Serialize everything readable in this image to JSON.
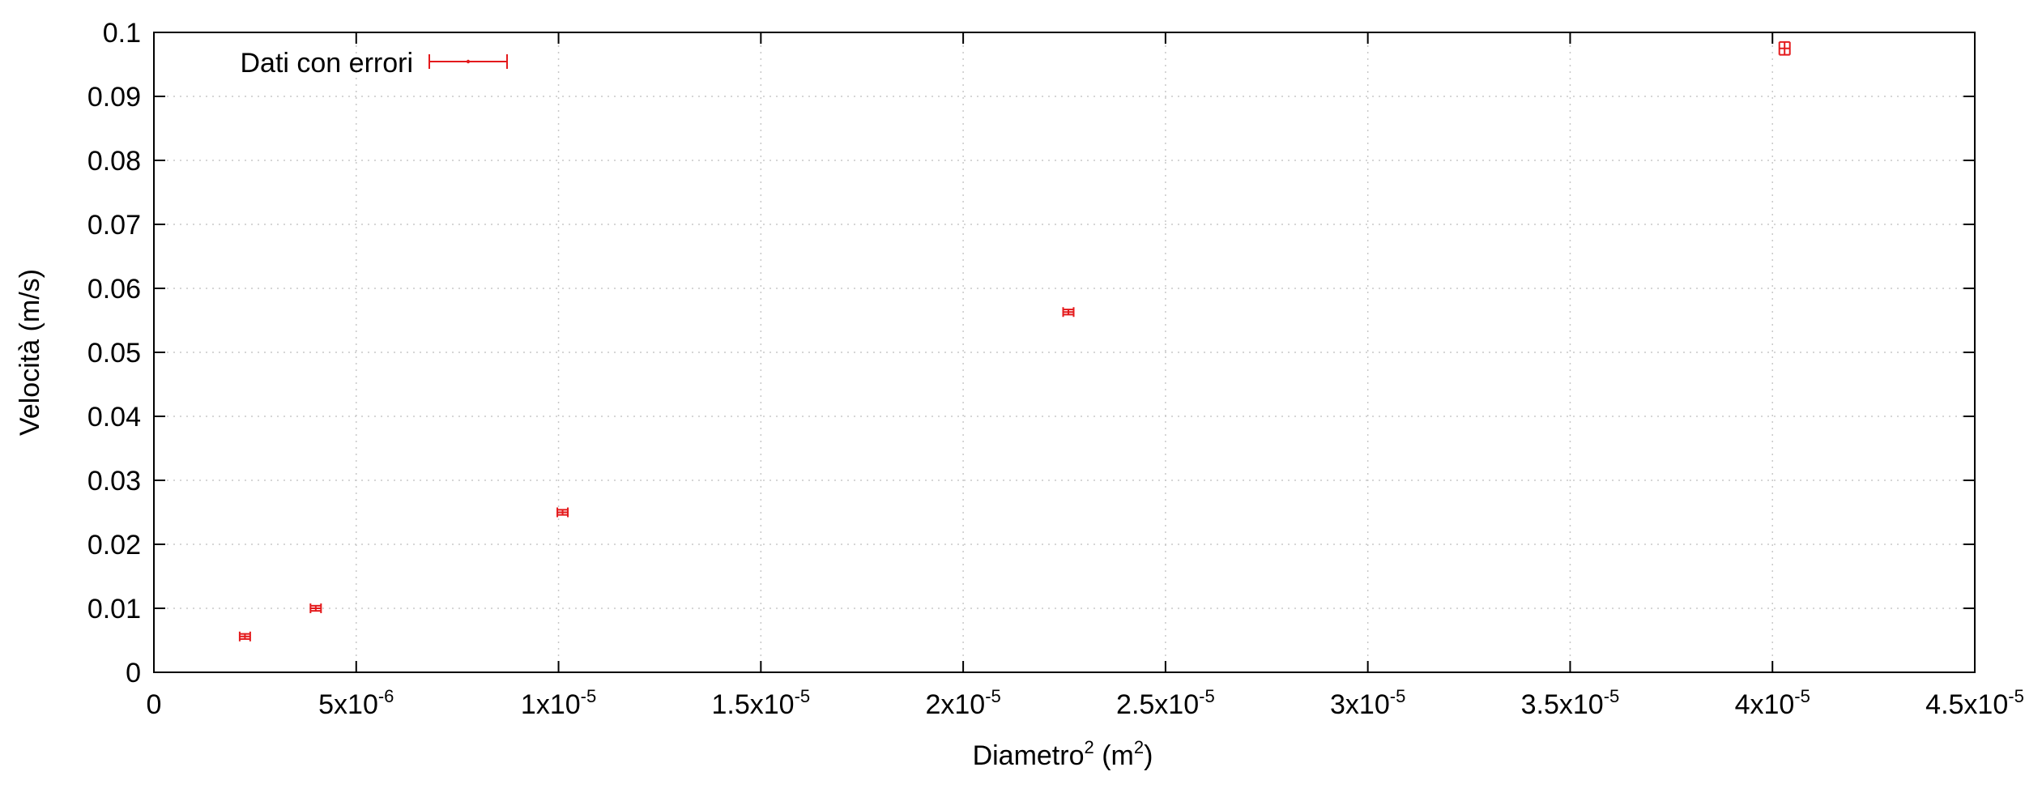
{
  "chart_data": {
    "type": "scatter",
    "xlabel": {
      "base": "Diametro",
      "sup": "2",
      "unit_prefix": " (m",
      "unit_sup": "2",
      "unit_suffix": ")"
    },
    "ylabel": "Velocità (m/s)",
    "xlim": [
      0,
      4.5e-05
    ],
    "ylim": [
      0,
      0.1
    ],
    "x_ticks": [
      {
        "value": 0,
        "mant": "0",
        "exp": ""
      },
      {
        "value": 5e-06,
        "mant": "5x10",
        "exp": "-6"
      },
      {
        "value": 1e-05,
        "mant": "1x10",
        "exp": "-5"
      },
      {
        "value": 1.5e-05,
        "mant": "1.5x10",
        "exp": "-5"
      },
      {
        "value": 2e-05,
        "mant": "2x10",
        "exp": "-5"
      },
      {
        "value": 2.5e-05,
        "mant": "2.5x10",
        "exp": "-5"
      },
      {
        "value": 3e-05,
        "mant": "3x10",
        "exp": "-5"
      },
      {
        "value": 3.5e-05,
        "mant": "3.5x10",
        "exp": "-5"
      },
      {
        "value": 4e-05,
        "mant": "4x10",
        "exp": "-5"
      },
      {
        "value": 4.5e-05,
        "mant": "4.5x10",
        "exp": "-5"
      }
    ],
    "y_ticks": [
      {
        "value": 0,
        "label": "0"
      },
      {
        "value": 0.01,
        "label": "0.01"
      },
      {
        "value": 0.02,
        "label": "0.02"
      },
      {
        "value": 0.03,
        "label": "0.03"
      },
      {
        "value": 0.04,
        "label": "0.04"
      },
      {
        "value": 0.05,
        "label": "0.05"
      },
      {
        "value": 0.06,
        "label": "0.06"
      },
      {
        "value": 0.07,
        "label": "0.07"
      },
      {
        "value": 0.08,
        "label": "0.08"
      },
      {
        "value": 0.09,
        "label": "0.09"
      },
      {
        "value": 0.1,
        "label": "0.1"
      }
    ],
    "grid": true,
    "legend_position": "top-left",
    "series": [
      {
        "name": "Dati con errori",
        "color": "#e41a1c",
        "points": [
          {
            "x": 2.25e-06,
            "y": 0.0056,
            "xerr": 1.3e-07,
            "yerr": 0.0004
          },
          {
            "x": 4e-06,
            "y": 0.01,
            "xerr": 1.3e-07,
            "yerr": 0.0004
          },
          {
            "x": 1.01e-05,
            "y": 0.025,
            "xerr": 1.3e-07,
            "yerr": 0.0004
          },
          {
            "x": 2.26e-05,
            "y": 0.0563,
            "xerr": 1.3e-07,
            "yerr": 0.0004
          },
          {
            "x": 4.03e-05,
            "y": 0.0975,
            "xerr": 1.3e-07,
            "yerr": 0.001
          }
        ]
      }
    ]
  }
}
